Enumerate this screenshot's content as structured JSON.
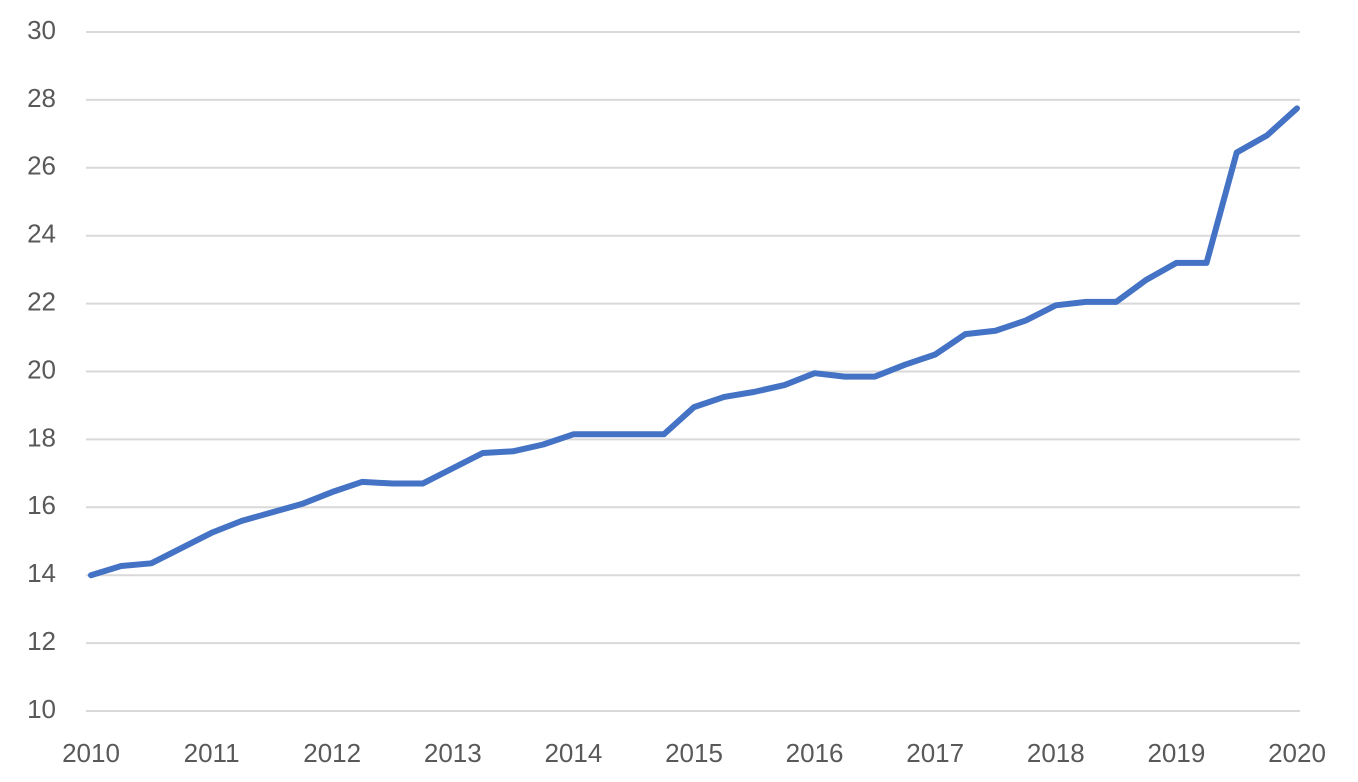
{
  "chart_data": {
    "type": "line",
    "x": [
      2010,
      2010.25,
      2010.5,
      2010.75,
      2011,
      2011.25,
      2011.5,
      2011.75,
      2012,
      2012.25,
      2012.5,
      2012.75,
      2013,
      2013.25,
      2013.5,
      2013.75,
      2014,
      2014.25,
      2014.5,
      2014.75,
      2015,
      2015.25,
      2015.5,
      2015.75,
      2016,
      2016.25,
      2016.5,
      2016.75,
      2017,
      2017.25,
      2017.5,
      2017.75,
      2018,
      2018.25,
      2018.5,
      2018.75,
      2019,
      2019.25,
      2019.5,
      2019.75,
      2020
    ],
    "values": [
      14.0,
      14.27,
      14.35,
      14.8,
      15.25,
      15.6,
      15.85,
      16.1,
      16.45,
      16.75,
      16.7,
      16.7,
      17.15,
      17.6,
      17.65,
      17.85,
      18.15,
      18.15,
      18.15,
      18.15,
      18.95,
      19.25,
      19.4,
      19.6,
      19.95,
      19.85,
      19.85,
      20.2,
      20.5,
      21.1,
      21.2,
      21.5,
      21.95,
      22.05,
      22.05,
      22.7,
      23.2,
      23.2,
      26.45,
      26.95,
      27.75
    ],
    "color": "#4472c4",
    "xlim": [
      2010,
      2020
    ],
    "xticks": [
      2010,
      2011,
      2012,
      2013,
      2014,
      2015,
      2016,
      2017,
      2018,
      2019,
      2020
    ],
    "ylim": [
      10,
      30
    ],
    "yticks": [
      10,
      12,
      14,
      16,
      18,
      20,
      22,
      24,
      26,
      28,
      30
    ],
    "grid": true
  }
}
